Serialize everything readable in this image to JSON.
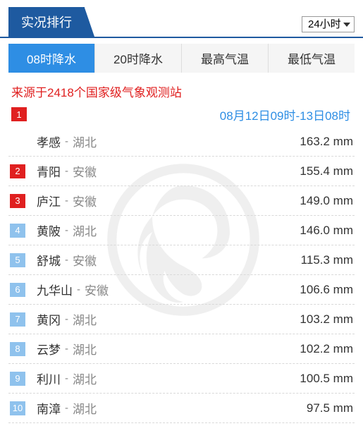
{
  "header": {
    "title": "实况排行",
    "timeSelect": {
      "selected": "24小时",
      "options": [
        "24小时"
      ]
    }
  },
  "tabs": [
    {
      "label": "08时降水",
      "active": true
    },
    {
      "label": "20时降水",
      "active": false
    },
    {
      "label": "最高气温",
      "active": false
    },
    {
      "label": "最低气温",
      "active": false
    }
  ],
  "source": "来源于2418个国家级气象观测站",
  "dateRange": "08月12日09时-13日08时",
  "unit": "mm",
  "rankings": [
    {
      "rank": 1,
      "city": "孝感",
      "province": "湖北",
      "value": "163.2",
      "badgeColor": "red",
      "offset": true
    },
    {
      "rank": 2,
      "city": "青阳",
      "province": "安徽",
      "value": "155.4",
      "badgeColor": "red",
      "offset": false
    },
    {
      "rank": 3,
      "city": "庐江",
      "province": "安徽",
      "value": "149.0",
      "badgeColor": "red",
      "offset": false
    },
    {
      "rank": 4,
      "city": "黄陂",
      "province": "湖北",
      "value": "146.0",
      "badgeColor": "blue",
      "offset": false
    },
    {
      "rank": 5,
      "city": "舒城",
      "province": "安徽",
      "value": "115.3",
      "badgeColor": "blue",
      "offset": false
    },
    {
      "rank": 6,
      "city": "九华山",
      "province": "安徽",
      "value": "106.6",
      "badgeColor": "blue",
      "offset": false
    },
    {
      "rank": 7,
      "city": "黄冈",
      "province": "湖北",
      "value": "103.2",
      "badgeColor": "blue",
      "offset": false
    },
    {
      "rank": 8,
      "city": "云梦",
      "province": "湖北",
      "value": "102.2",
      "badgeColor": "blue",
      "offset": false
    },
    {
      "rank": 9,
      "city": "利川",
      "province": "湖北",
      "value": "100.5",
      "badgeColor": "blue",
      "offset": false
    },
    {
      "rank": 10,
      "city": "南漳",
      "province": "湖北",
      "value": "97.5",
      "badgeColor": "blue",
      "offset": false
    }
  ],
  "colors": {
    "primaryBlue": "#1e5aa0",
    "tabActive": "#2e8ee4",
    "red": "#e02020",
    "lightBlue": "#8fc2ed",
    "textGray": "#888888"
  }
}
